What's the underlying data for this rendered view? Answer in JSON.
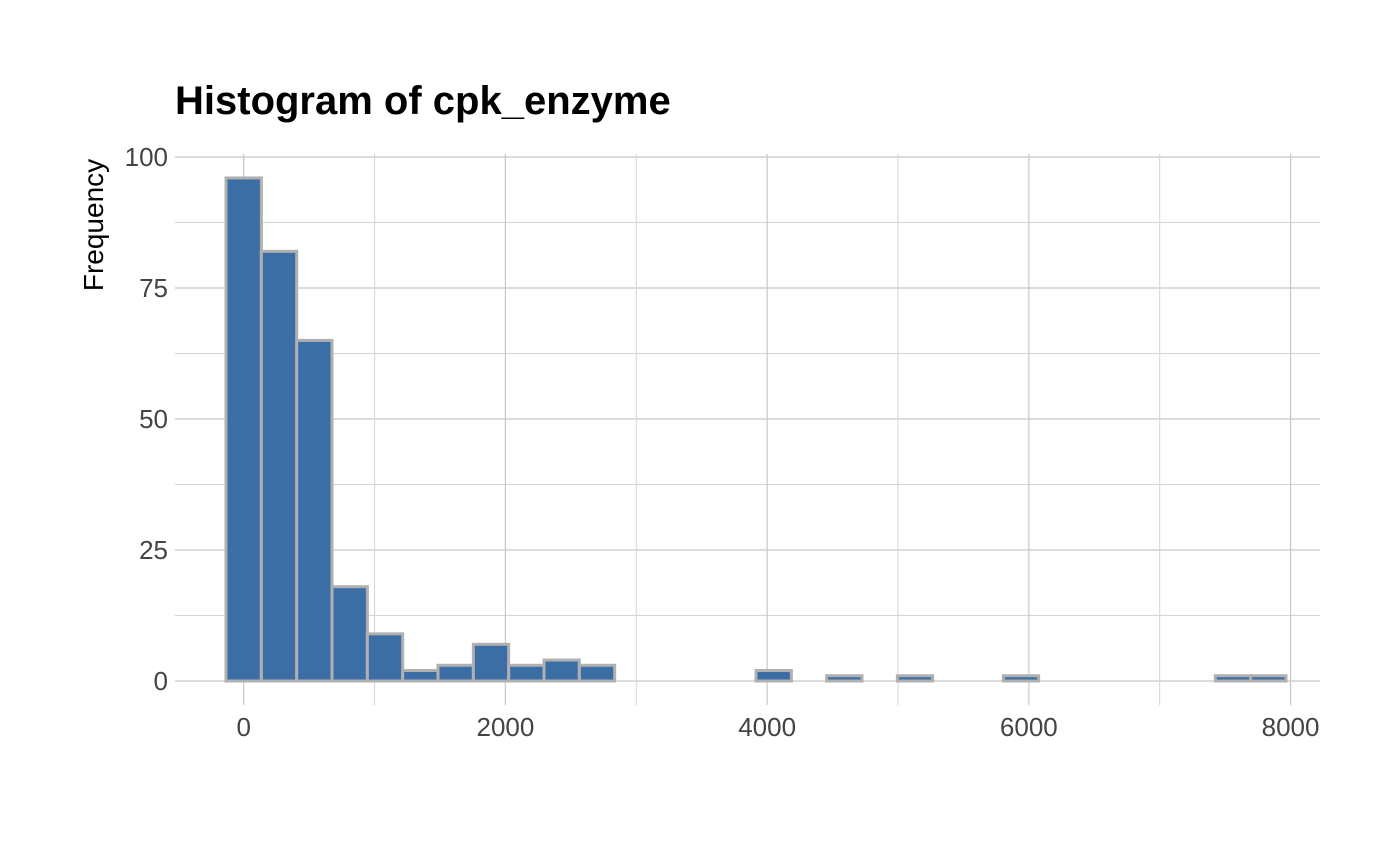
{
  "chart_data": {
    "type": "bar",
    "title": "Histogram of cpk_enzyme",
    "xlabel": "",
    "ylabel": "Frequency",
    "xlim": [
      -525,
      8225
    ],
    "ylim": [
      0,
      100
    ],
    "x_ticks": [
      0,
      2000,
      4000,
      6000,
      8000
    ],
    "x_minor_gridlines": [
      1000,
      3000,
      5000,
      7000
    ],
    "y_ticks": [
      0,
      25,
      50,
      75,
      100
    ],
    "y_minor_gridlines": [
      12.5,
      37.5,
      62.5,
      87.5
    ],
    "grid": true,
    "bin_width": 270,
    "bins": [
      {
        "x_start": -135,
        "x_end": 135,
        "count": 96
      },
      {
        "x_start": 135,
        "x_end": 405,
        "count": 82
      },
      {
        "x_start": 405,
        "x_end": 675,
        "count": 65
      },
      {
        "x_start": 675,
        "x_end": 945,
        "count": 18
      },
      {
        "x_start": 945,
        "x_end": 1215,
        "count": 9
      },
      {
        "x_start": 1215,
        "x_end": 1485,
        "count": 2
      },
      {
        "x_start": 1485,
        "x_end": 1755,
        "count": 3
      },
      {
        "x_start": 1755,
        "x_end": 2025,
        "count": 7
      },
      {
        "x_start": 2025,
        "x_end": 2295,
        "count": 3
      },
      {
        "x_start": 2295,
        "x_end": 2565,
        "count": 4
      },
      {
        "x_start": 2565,
        "x_end": 2835,
        "count": 3
      },
      {
        "x_start": 2835,
        "x_end": 3105,
        "count": 0
      },
      {
        "x_start": 3105,
        "x_end": 3375,
        "count": 0
      },
      {
        "x_start": 3375,
        "x_end": 3645,
        "count": 0
      },
      {
        "x_start": 3645,
        "x_end": 3915,
        "count": 0
      },
      {
        "x_start": 3915,
        "x_end": 4185,
        "count": 2
      },
      {
        "x_start": 4185,
        "x_end": 4455,
        "count": 0
      },
      {
        "x_start": 4455,
        "x_end": 4725,
        "count": 1
      },
      {
        "x_start": 4725,
        "x_end": 4995,
        "count": 0
      },
      {
        "x_start": 4995,
        "x_end": 5265,
        "count": 1
      },
      {
        "x_start": 5265,
        "x_end": 5535,
        "count": 0
      },
      {
        "x_start": 5535,
        "x_end": 5805,
        "count": 0
      },
      {
        "x_start": 5805,
        "x_end": 6075,
        "count": 1
      },
      {
        "x_start": 6075,
        "x_end": 6345,
        "count": 0
      },
      {
        "x_start": 6345,
        "x_end": 6615,
        "count": 0
      },
      {
        "x_start": 6615,
        "x_end": 6885,
        "count": 0
      },
      {
        "x_start": 6885,
        "x_end": 7155,
        "count": 0
      },
      {
        "x_start": 7155,
        "x_end": 7425,
        "count": 0
      },
      {
        "x_start": 7425,
        "x_end": 7695,
        "count": 1
      },
      {
        "x_start": 7695,
        "x_end": 7965,
        "count": 1
      }
    ],
    "colors": {
      "bar_fill": "#3a6ea5",
      "bar_outline": "#b0b0b0",
      "background": "#ffffff"
    }
  }
}
